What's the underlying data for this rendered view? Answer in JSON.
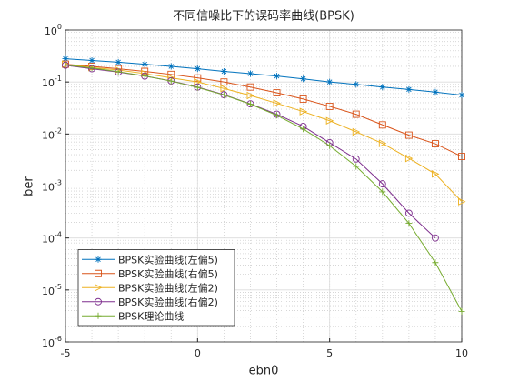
{
  "chart_data": {
    "type": "line",
    "title": "不同信噪比下的误码率曲线(BPSK)",
    "xlabel": "ebn0",
    "ylabel": "ber",
    "x": [
      -5,
      -4,
      -3,
      -2,
      -1,
      0,
      1,
      2,
      3,
      4,
      5,
      6,
      7,
      8,
      9,
      10
    ],
    "xlim": [
      -5,
      10
    ],
    "xticks": [
      -5,
      0,
      5,
      10
    ],
    "ylim": [
      1e-06,
      1
    ],
    "yscale": "log",
    "yticks": [
      {
        "value": 1e-06,
        "label": "10^-6"
      },
      {
        "value": 1e-05,
        "label": "10^-5"
      },
      {
        "value": 0.0001,
        "label": "10^-4"
      },
      {
        "value": 0.001,
        "label": "10^-3"
      },
      {
        "value": 0.01,
        "label": "10^-2"
      },
      {
        "value": 0.1,
        "label": "10^-1"
      },
      {
        "value": 1,
        "label": "10^0"
      }
    ],
    "grid": true,
    "minor_grid": true,
    "legend": "lower left",
    "series": [
      {
        "name": "BPSK实验曲线(左偏5)",
        "color": "#0072BD",
        "marker": "asterisk",
        "values": [
          0.28,
          0.26,
          0.24,
          0.22,
          0.2,
          0.18,
          0.16,
          0.145,
          0.13,
          0.115,
          0.1,
          0.09,
          0.08,
          0.072,
          0.064,
          0.056
        ]
      },
      {
        "name": "BPSK实验曲线(右偏5)",
        "color": "#D95319",
        "marker": "square",
        "values": [
          0.22,
          0.2,
          0.18,
          0.16,
          0.14,
          0.12,
          0.1,
          0.08,
          0.062,
          0.047,
          0.034,
          0.024,
          0.015,
          0.0095,
          0.0065,
          0.0037
        ]
      },
      {
        "name": "BPSK实验曲线(左偏2)",
        "color": "#EDB120",
        "marker": "triangle-right",
        "values": [
          0.22,
          0.19,
          0.17,
          0.145,
          0.12,
          0.1,
          0.075,
          0.055,
          0.039,
          0.027,
          0.018,
          0.011,
          0.0066,
          0.0034,
          0.0017,
          0.0005
        ]
      },
      {
        "name": "BPSK实验曲线(右偏2)",
        "color": "#7E2F8E",
        "marker": "circle",
        "values": [
          0.21,
          0.18,
          0.155,
          0.13,
          0.105,
          0.08,
          0.057,
          0.038,
          0.024,
          0.014,
          0.0068,
          0.0033,
          0.0011,
          0.0003,
          0.0001,
          null
        ]
      },
      {
        "name": "BPSK理论曲线",
        "color": "#77AC30",
        "marker": "plus",
        "values": [
          0.213,
          0.186,
          0.158,
          0.131,
          0.104,
          0.0786,
          0.0563,
          0.0375,
          0.0229,
          0.0125,
          0.00595,
          0.00239,
          0.000773,
          0.000191,
          3.36e-05,
          3.87e-06
        ]
      }
    ]
  }
}
